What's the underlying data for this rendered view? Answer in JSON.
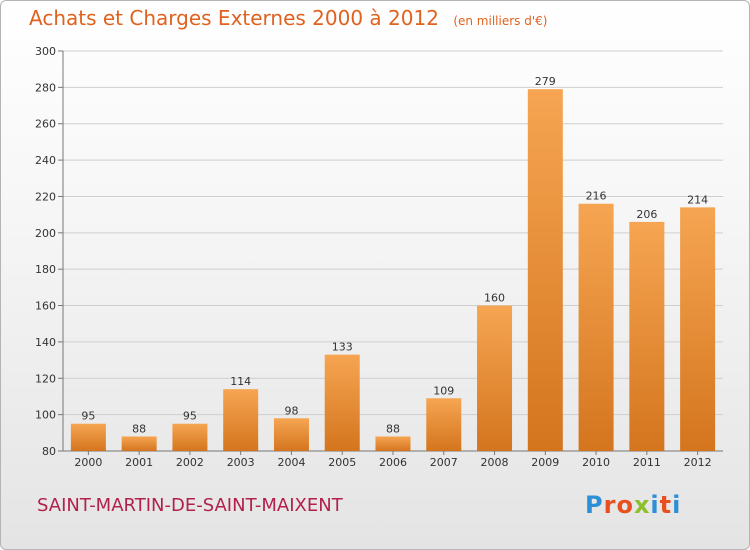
{
  "header": {
    "title": "Achats et Charges Externes 2000 à 2012",
    "unit": "(en milliers d'€)"
  },
  "footer": {
    "commune": "SAINT-MARTIN-DE-SAINT-MAIXENT",
    "logo_text": "Proxiti"
  },
  "colors": {
    "title": "#e0621f",
    "commune": "#b2204c",
    "bar_top": "#f6a552",
    "bar_bottom": "#d4751e",
    "logo_letters": [
      "#2d8fd6",
      "#e8511f",
      "#e8511f",
      "#8dbf2b",
      "#2d8fd6",
      "#e8511f",
      "#2d8fd6"
    ]
  },
  "chart_data": {
    "type": "bar",
    "categories": [
      "2000",
      "2001",
      "2002",
      "2003",
      "2004",
      "2005",
      "2006",
      "2007",
      "2008",
      "2009",
      "2010",
      "2011",
      "2012"
    ],
    "values": [
      95,
      88,
      95,
      114,
      98,
      133,
      88,
      109,
      160,
      279,
      216,
      206,
      214
    ],
    "yticks": [
      80,
      100,
      120,
      140,
      160,
      180,
      200,
      220,
      240,
      260,
      280,
      300
    ],
    "ylim": [
      80,
      300
    ],
    "title": "Achats et Charges Externes 2000 à 2012",
    "xlabel": "",
    "ylabel": "",
    "grid": true
  }
}
